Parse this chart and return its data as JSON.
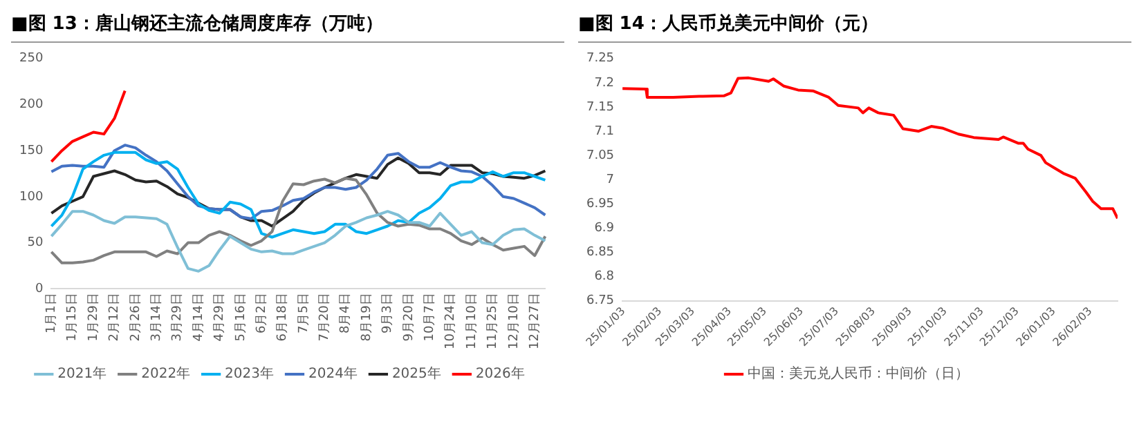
{
  "chart_data": [
    {
      "type": "line",
      "title": "■图 13：唐山钢还主流仓储周度库存（万吨）",
      "categories": [
        "1月1日",
        null,
        "1月15日",
        null,
        "1月29日",
        null,
        "2月12日",
        null,
        "2月26日",
        null,
        "3月14日",
        null,
        "3月29日",
        null,
        "4月14日",
        null,
        "4月29日",
        null,
        "5月16日",
        null,
        "6月2日",
        null,
        "6月18日",
        null,
        "7月5日",
        null,
        "7月20日",
        null,
        "8月4日",
        null,
        "8月19日",
        null,
        "9月3日",
        null,
        "9月20日",
        null,
        "10月7日",
        null,
        "10月24日",
        null,
        "11月10日",
        null,
        "11月25日",
        null,
        "12月10日",
        null,
        "12月27日",
        null
      ],
      "series": [
        {
          "name": "2021年",
          "color": "#7fbfd6",
          "values": [
            57,
            70,
            84,
            84,
            80,
            74,
            71,
            78,
            78,
            77,
            76,
            70,
            45,
            22,
            19,
            25,
            42,
            57,
            50,
            43,
            40,
            41,
            38,
            38,
            42,
            46,
            50,
            58,
            68,
            72,
            77,
            80,
            84,
            80,
            72,
            72,
            68,
            82,
            70,
            58,
            62,
            50,
            48,
            58,
            64,
            65,
            58,
            52
          ]
        },
        {
          "name": "2022年",
          "color": "#808080",
          "values": [
            40,
            28,
            28,
            29,
            31,
            36,
            40,
            40,
            40,
            40,
            35,
            41,
            38,
            50,
            50,
            58,
            62,
            58,
            52,
            47,
            52,
            62,
            95,
            114,
            113,
            117,
            119,
            115,
            120,
            118,
            102,
            82,
            72,
            68,
            70,
            69,
            65,
            65,
            60,
            52,
            48,
            55,
            48,
            42,
            44,
            46,
            36,
            57
          ]
        },
        {
          "name": "2023年",
          "color": "#00b0f0",
          "values": [
            68,
            80,
            100,
            130,
            138,
            145,
            148,
            148,
            148,
            140,
            136,
            138,
            130,
            110,
            92,
            85,
            82,
            94,
            92,
            86,
            60,
            56,
            60,
            64,
            62,
            60,
            62,
            70,
            70,
            62,
            60,
            64,
            68,
            74,
            72,
            82,
            88,
            98,
            112,
            116,
            116,
            122,
            127,
            122,
            126,
            126,
            122,
            118
          ]
        },
        {
          "name": "2024年",
          "color": "#4472c4",
          "values": [
            127,
            133,
            134,
            133,
            133,
            132,
            150,
            156,
            153,
            145,
            138,
            128,
            114,
            100,
            90,
            87,
            86,
            86,
            78,
            76,
            84,
            85,
            90,
            96,
            98,
            105,
            110,
            110,
            108,
            110,
            118,
            130,
            145,
            147,
            138,
            132,
            132,
            137,
            132,
            128,
            127,
            122,
            112,
            100,
            98,
            93,
            88,
            80
          ]
        },
        {
          "name": "2025年",
          "color": "#262626",
          "values": [
            82,
            90,
            95,
            100,
            122,
            125,
            128,
            124,
            118,
            116,
            117,
            111,
            103,
            99,
            93,
            87,
            86,
            86,
            78,
            74,
            74,
            68,
            76,
            84,
            96,
            104,
            110,
            115,
            120,
            124,
            122,
            120,
            135,
            142,
            136,
            126,
            126,
            124,
            134,
            134,
            134,
            126,
            125,
            122,
            121,
            120,
            123,
            128
          ]
        },
        {
          "name": "2026年",
          "color": "#ff0000",
          "values": [
            138,
            150,
            160,
            165,
            170,
            168,
            185,
            215,
            null,
            null,
            null,
            null,
            null,
            null,
            null,
            null,
            null,
            null,
            null,
            null,
            null,
            null,
            null,
            null,
            null,
            null,
            null,
            null,
            null,
            null,
            null,
            null,
            null,
            null,
            null,
            null,
            null,
            null,
            null,
            null,
            null,
            null,
            null,
            null,
            null,
            null,
            null,
            null
          ]
        }
      ],
      "ylim": [
        0,
        250
      ],
      "yticks": [
        0,
        50,
        100,
        150,
        200,
        250
      ],
      "legend": "bottom",
      "marker": "none",
      "line_style": "solid"
    },
    {
      "type": "line",
      "title": "■图 14：人民币兑美元中间价（元）",
      "series": [
        {
          "name": "中国：美元兑人民币：中间价（日）",
          "color": "#ff0000",
          "x": [
            "2025-01-02",
            "2025-01-22",
            "2025-01-23",
            "2025-02-14",
            "2025-03-08",
            "2025-03-29",
            "2025-04-04",
            "2025-04-10",
            "2025-04-19",
            "2025-05-06",
            "2025-05-10",
            "2025-05-19",
            "2025-05-31",
            "2025-06-13",
            "2025-06-26",
            "2025-07-04",
            "2025-07-21",
            "2025-07-25",
            "2025-07-30",
            "2025-08-07",
            "2025-08-20",
            "2025-08-28",
            "2025-09-10",
            "2025-09-21",
            "2025-10-01",
            "2025-10-14",
            "2025-10-27",
            "2025-11-17",
            "2025-11-21",
            "2025-12-04",
            "2025-12-08",
            "2025-12-12",
            "2025-12-23",
            "2025-12-27",
            "2026-01-11",
            "2026-01-21",
            "2026-01-30",
            "2026-02-05",
            "2026-02-12",
            "2026-02-22",
            "2026-02-26"
          ],
          "values": [
            7.188,
            7.187,
            7.17,
            7.17,
            7.172,
            7.173,
            7.179,
            7.209,
            7.21,
            7.203,
            7.208,
            7.193,
            7.185,
            7.183,
            7.17,
            7.153,
            7.148,
            7.138,
            7.148,
            7.138,
            7.133,
            7.105,
            7.1,
            7.11,
            7.106,
            7.094,
            7.087,
            7.083,
            7.088,
            7.075,
            7.075,
            7.063,
            7.05,
            7.035,
            7.013,
            7.003,
            6.975,
            6.955,
            6.94,
            6.94,
            6.92
          ]
        }
      ],
      "xlim": [
        "2025-01-02",
        "2026-02-26"
      ],
      "xticks": [
        {
          "value": "2025-01-03",
          "label": "25/01/03"
        },
        {
          "value": "2025-02-03",
          "label": "25/02/03"
        },
        {
          "value": "2025-03-03",
          "label": "25/03/03"
        },
        {
          "value": "2025-04-03",
          "label": "25/04/03"
        },
        {
          "value": "2025-05-03",
          "label": "25/05/03"
        },
        {
          "value": "2025-06-03",
          "label": "25/06/03"
        },
        {
          "value": "2025-07-03",
          "label": "25/07/03"
        },
        {
          "value": "2025-08-03",
          "label": "25/08/03"
        },
        {
          "value": "2025-09-03",
          "label": "25/09/03"
        },
        {
          "value": "2025-10-03",
          "label": "25/10/03"
        },
        {
          "value": "2025-11-03",
          "label": "25/11/03"
        },
        {
          "value": "2025-12-03",
          "label": "25/12/03"
        },
        {
          "value": "2026-01-03",
          "label": "26/01/03"
        },
        {
          "value": "2026-02-03",
          "label": "26/02/03"
        }
      ],
      "ylim": [
        6.75,
        7.25
      ],
      "yticks": [
        6.75,
        6.8,
        6.85,
        6.9,
        6.95,
        7,
        7.05,
        7.1,
        7.15,
        7.2,
        7.25
      ],
      "legend": "bottom",
      "marker": "none",
      "line_style": "solid"
    }
  ]
}
